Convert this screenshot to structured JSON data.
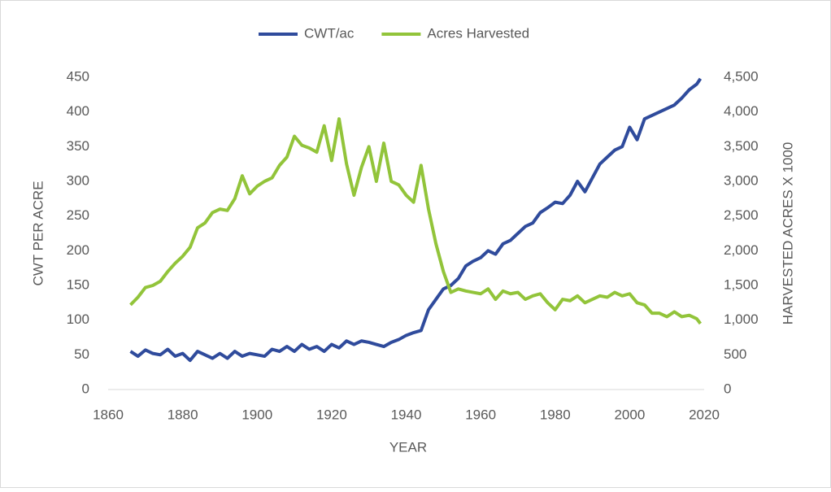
{
  "chart_data": {
    "type": "line",
    "x_label": "YEAR",
    "y_label": "CWT PER ACRE",
    "y2_label": "HARVESTED ACRES X 1000",
    "x": [
      1866,
      1868,
      1870,
      1872,
      1874,
      1876,
      1878,
      1880,
      1882,
      1884,
      1886,
      1888,
      1890,
      1892,
      1894,
      1896,
      1898,
      1900,
      1902,
      1904,
      1906,
      1908,
      1910,
      1912,
      1914,
      1916,
      1918,
      1920,
      1922,
      1924,
      1926,
      1928,
      1930,
      1932,
      1934,
      1936,
      1938,
      1940,
      1942,
      1944,
      1946,
      1948,
      1950,
      1952,
      1954,
      1956,
      1958,
      1960,
      1962,
      1964,
      1966,
      1968,
      1970,
      1972,
      1974,
      1976,
      1978,
      1980,
      1982,
      1984,
      1986,
      1988,
      1990,
      1992,
      1994,
      1996,
      1998,
      2000,
      2002,
      2004,
      2006,
      2008,
      2010,
      2012,
      2014,
      2016,
      2018,
      2019
    ],
    "series": [
      {
        "name": "CWT/ac",
        "color": "#2f4b9c",
        "axis": "y",
        "values": [
          55,
          48,
          57,
          52,
          50,
          58,
          48,
          52,
          42,
          55,
          50,
          45,
          52,
          45,
          55,
          48,
          52,
          50,
          48,
          58,
          55,
          62,
          55,
          65,
          58,
          62,
          55,
          65,
          60,
          70,
          65,
          70,
          68,
          65,
          62,
          68,
          72,
          78,
          82,
          85,
          115,
          130,
          145,
          150,
          160,
          178,
          185,
          190,
          200,
          195,
          210,
          215,
          225,
          235,
          240,
          255,
          262,
          270,
          268,
          280,
          300,
          285,
          305,
          325,
          335,
          345,
          350,
          378,
          360,
          390,
          395,
          400,
          405,
          410,
          420,
          432,
          440,
          448
        ]
      },
      {
        "name": "Acres Harvested",
        "color": "#92c43a",
        "axis": "y2",
        "values": [
          1220,
          1330,
          1470,
          1500,
          1560,
          1700,
          1820,
          1920,
          2050,
          2330,
          2400,
          2550,
          2600,
          2580,
          2750,
          3080,
          2820,
          2930,
          3000,
          3050,
          3230,
          3350,
          3650,
          3520,
          3480,
          3420,
          3800,
          3300,
          3900,
          3250,
          2800,
          3200,
          3500,
          3000,
          3550,
          3000,
          2950,
          2800,
          2700,
          3230,
          2600,
          2100,
          1700,
          1400,
          1450,
          1420,
          1400,
          1380,
          1450,
          1300,
          1420,
          1380,
          1400,
          1300,
          1350,
          1380,
          1250,
          1150,
          1300,
          1280,
          1350,
          1250,
          1300,
          1350,
          1330,
          1400,
          1350,
          1380,
          1250,
          1220,
          1100,
          1100,
          1050,
          1120,
          1050,
          1070,
          1020,
          950
        ]
      }
    ],
    "xlim": [
      1860,
      2020
    ],
    "xticks": [
      1860,
      1880,
      1900,
      1920,
      1940,
      1960,
      1980,
      2000,
      2020
    ],
    "ylim": [
      0,
      450
    ],
    "yticks": [
      0,
      50,
      100,
      150,
      200,
      250,
      300,
      350,
      400,
      450
    ],
    "y2lim": [
      0,
      4500
    ],
    "y2ticks": [
      0,
      500,
      {
        "value": 1000,
        "label": "1,000"
      },
      {
        "value": 1500,
        "label": "1,500"
      },
      {
        "value": 2000,
        "label": "2,000"
      },
      {
        "value": 2500,
        "label": "2,500"
      },
      {
        "value": 3000,
        "label": "3,000"
      },
      {
        "value": 3500,
        "label": "3,500"
      },
      {
        "value": 4000,
        "label": "4,000"
      },
      {
        "value": 4500,
        "label": "4,500"
      }
    ],
    "legend": "top",
    "grid": false
  }
}
